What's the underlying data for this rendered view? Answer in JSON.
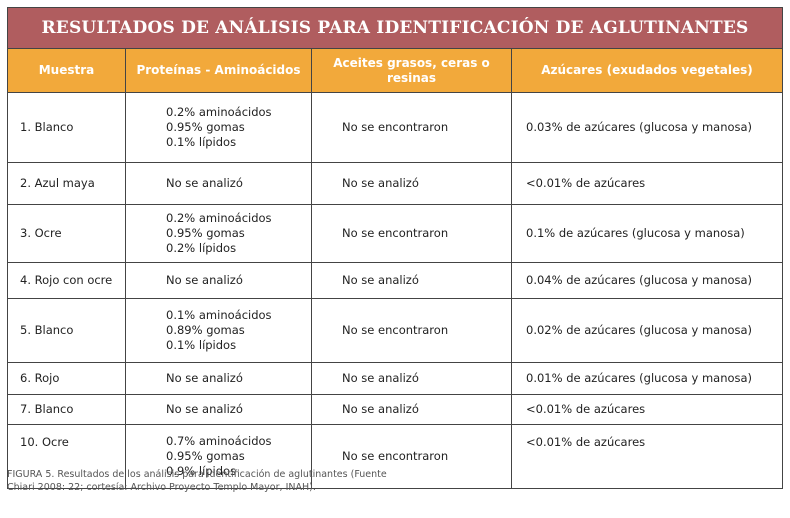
{
  "title": "RESULTADOS DE ANÁLISIS PARA IDENTIFICACIÓN DE AGLUTINANTES",
  "headers": [
    "Muestra",
    "Proteínas - Aminoácidos",
    "Aceites grasos, ceras o resinas",
    "Azúcares (exudados vegetales)"
  ],
  "rows": [
    {
      "muestra": "1. Blanco",
      "proteinas": [
        "0.2% aminoácidos",
        "0.95% gomas",
        "0.1% lípidos"
      ],
      "aceites": "No se encontraron",
      "azucares": "0.03% de azúcares (glucosa y manosa)"
    },
    {
      "muestra": "2. Azul maya",
      "proteinas": [
        "No se analizó"
      ],
      "aceites": "No se analizó",
      "azucares": "<0.01% de azúcares"
    },
    {
      "muestra": "3. Ocre",
      "proteinas": [
        "0.2% aminoácidos",
        "0.95% gomas",
        "0.2% lípidos"
      ],
      "aceites": "No se encontraron",
      "azucares": "0.1% de azúcares (glucosa y manosa)"
    },
    {
      "muestra": "4. Rojo con ocre",
      "proteinas": [
        "No se analizó"
      ],
      "aceites": "No se analizó",
      "azucares": "0.04% de azúcares (glucosa y manosa)"
    },
    {
      "muestra": "5. Blanco",
      "proteinas": [
        "0.1% aminoácidos",
        "0.89% gomas",
        "0.1% lípidos"
      ],
      "aceites": "No se encontraron",
      "azucares": "0.02% de azúcares (glucosa y manosa)"
    },
    {
      "muestra": "6. Rojo",
      "proteinas": [
        "No se analizó"
      ],
      "aceites": "No se analizó",
      "azucares": "0.01% de azúcares (glucosa y manosa)"
    },
    {
      "muestra": "7. Blanco",
      "proteinas": [
        "No se analizó"
      ],
      "aceites": "No se analizó",
      "azucares": "<0.01% de azúcares"
    },
    {
      "muestra": "10. Ocre",
      "proteinas": [
        "0.7% aminoácidos",
        "0.95% gomas",
        "0.9% lípidos"
      ],
      "aceites": "No se encontraron",
      "azucares": "<0.01% de azúcares"
    }
  ],
  "caption": "FIGURA 5. Resultados de los análisis para identificación de aglutinantes (Fuente Chiari 2008: 22; cortesía: Archivo Proyecto Templo Mayor, INAH).",
  "colors": {
    "title_bg": "#b05d5f",
    "header_bg": "#f2a93b"
  }
}
